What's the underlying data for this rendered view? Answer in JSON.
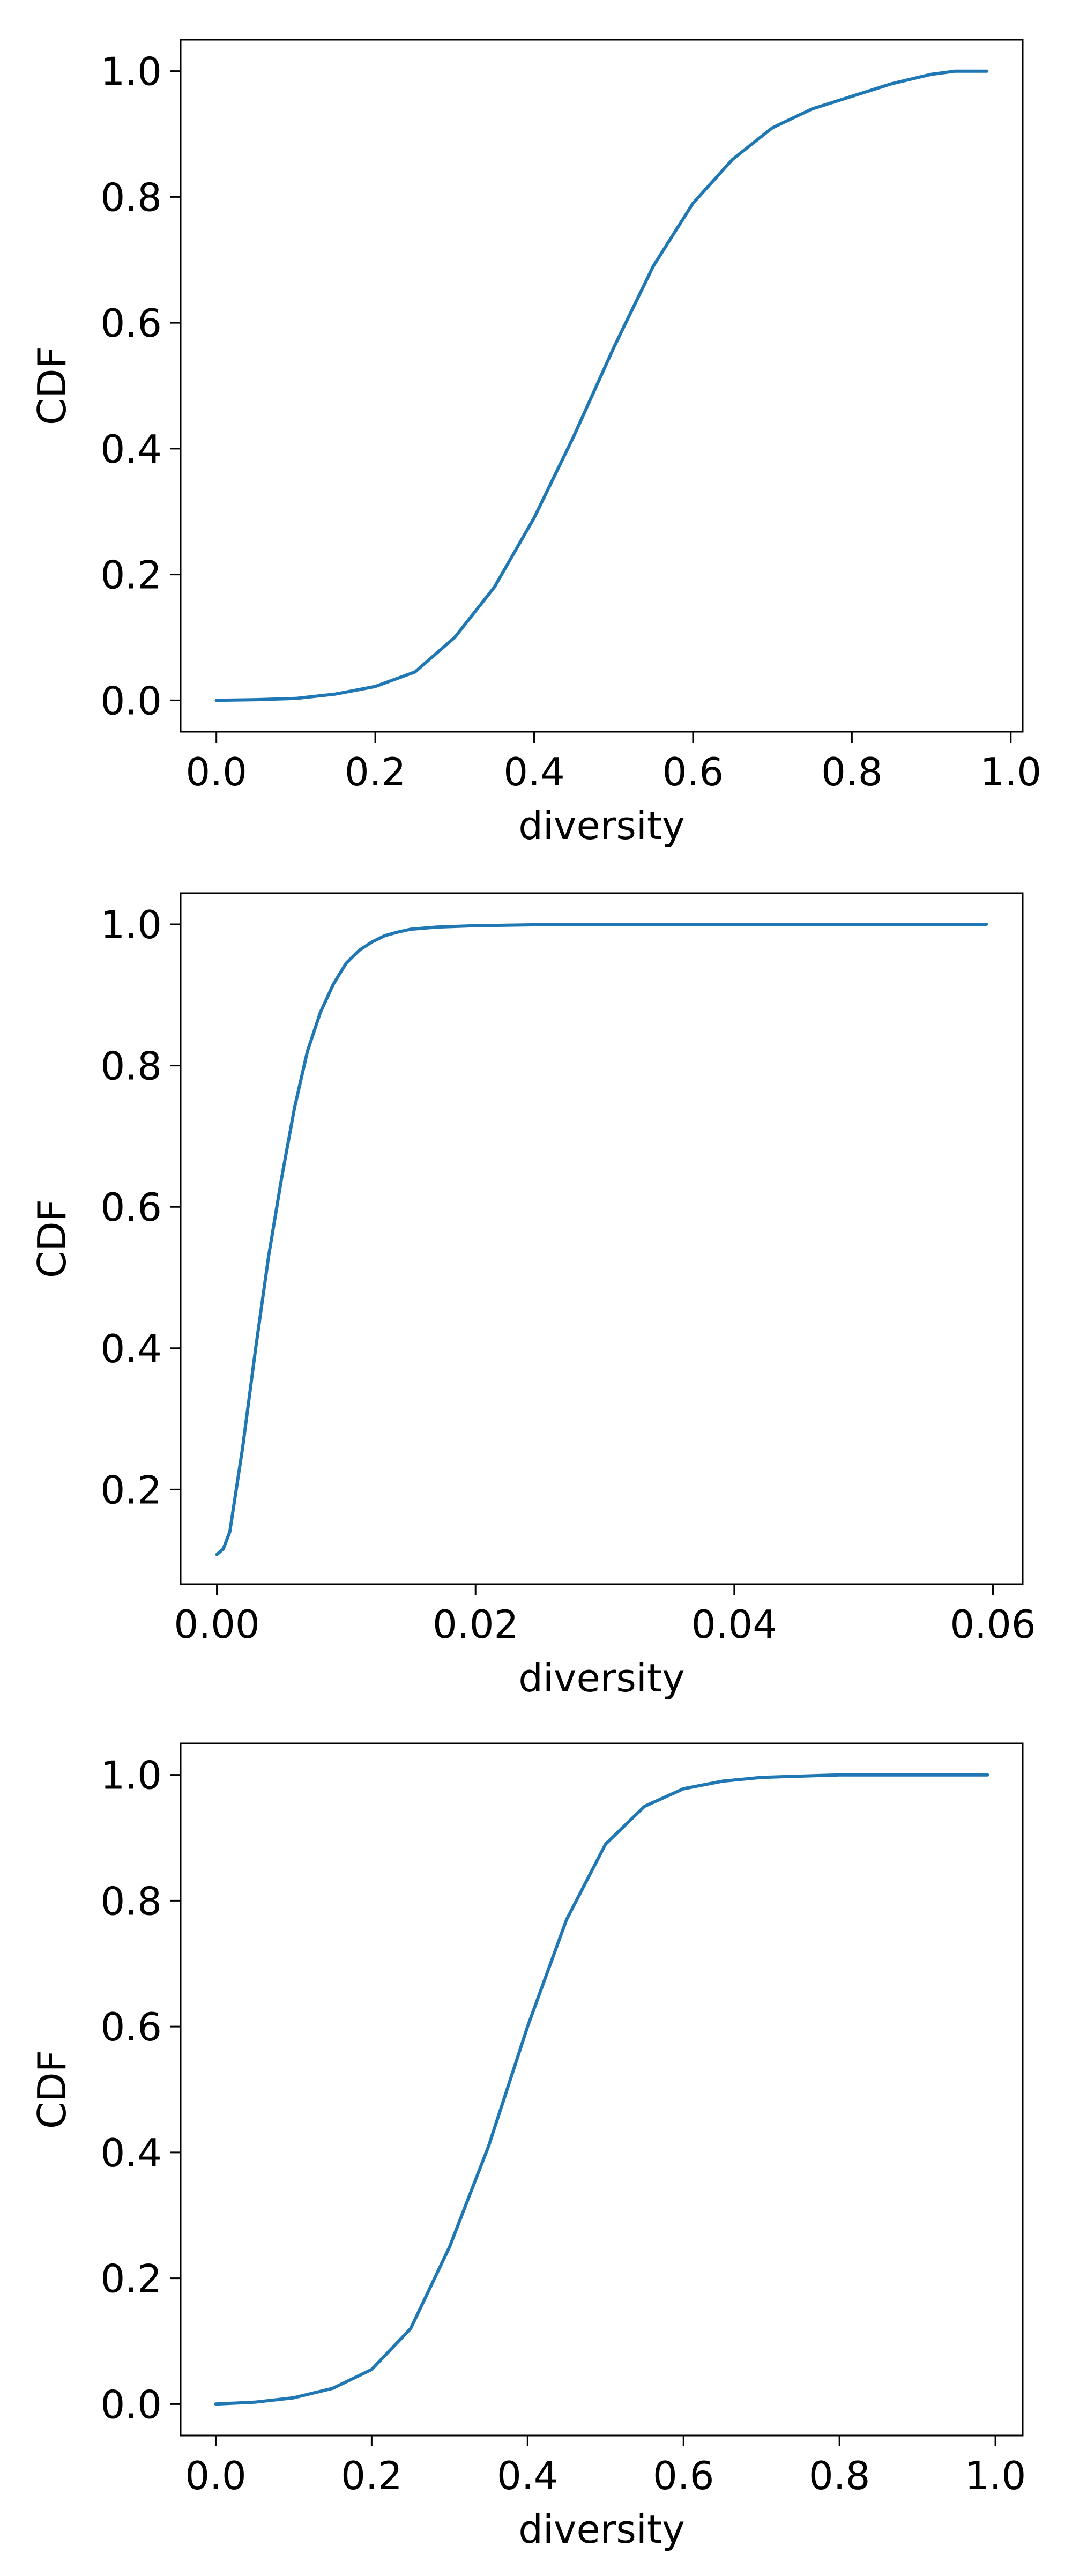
{
  "chart_data": [
    {
      "type": "line",
      "xlabel": "diversity",
      "ylabel": "CDF",
      "xlim": [
        -0.045,
        1.015
      ],
      "ylim": [
        -0.05,
        1.05
      ],
      "xticks": [
        0.0,
        0.2,
        0.4,
        0.6,
        0.8,
        1.0
      ],
      "xtick_labels": [
        "0.0",
        "0.2",
        "0.4",
        "0.6",
        "0.8",
        "1.0"
      ],
      "yticks": [
        0.0,
        0.2,
        0.4,
        0.6,
        0.8,
        1.0
      ],
      "ytick_labels": [
        "0.0",
        "0.2",
        "0.4",
        "0.6",
        "0.8",
        "1.0"
      ],
      "grid": false,
      "line_color": "#1f77b4",
      "series": [
        {
          "x": [
            0.0,
            0.05,
            0.1,
            0.15,
            0.2,
            0.25,
            0.3,
            0.35,
            0.4,
            0.45,
            0.5,
            0.55,
            0.6,
            0.65,
            0.7,
            0.75,
            0.8,
            0.85,
            0.9,
            0.93,
            0.97
          ],
          "y": [
            0.0,
            0.001,
            0.003,
            0.01,
            0.022,
            0.045,
            0.1,
            0.18,
            0.29,
            0.42,
            0.56,
            0.69,
            0.79,
            0.86,
            0.91,
            0.94,
            0.96,
            0.98,
            0.995,
            1.0,
            1.0
          ]
        }
      ]
    },
    {
      "type": "line",
      "xlabel": "diversity",
      "ylabel": "CDF",
      "xlim": [
        -0.0028,
        0.0623
      ],
      "ylim": [
        0.066,
        1.044
      ],
      "xticks": [
        0.0,
        0.02,
        0.04,
        0.06
      ],
      "xtick_labels": [
        "0.00",
        "0.02",
        "0.04",
        "0.06"
      ],
      "yticks": [
        0.2,
        0.4,
        0.6,
        0.8,
        1.0
      ],
      "ytick_labels": [
        "0.2",
        "0.4",
        "0.6",
        "0.8",
        "1.0"
      ],
      "grid": false,
      "line_color": "#1f77b4",
      "series": [
        {
          "x": [
            0.0,
            0.0005,
            0.001,
            0.002,
            0.003,
            0.004,
            0.005,
            0.006,
            0.007,
            0.008,
            0.009,
            0.01,
            0.011,
            0.012,
            0.013,
            0.014,
            0.015,
            0.017,
            0.02,
            0.025,
            0.03,
            0.04,
            0.05,
            0.0595
          ],
          "y": [
            0.108,
            0.116,
            0.14,
            0.26,
            0.4,
            0.53,
            0.64,
            0.74,
            0.82,
            0.875,
            0.915,
            0.945,
            0.963,
            0.975,
            0.984,
            0.989,
            0.993,
            0.996,
            0.998,
            0.9995,
            1.0,
            1.0,
            1.0,
            1.0
          ]
        }
      ]
    },
    {
      "type": "line",
      "xlabel": "diversity",
      "ylabel": "CDF",
      "xlim": [
        -0.045,
        1.035
      ],
      "ylim": [
        -0.05,
        1.05
      ],
      "xticks": [
        0.0,
        0.2,
        0.4,
        0.6,
        0.8,
        1.0
      ],
      "xtick_labels": [
        "0.0",
        "0.2",
        "0.4",
        "0.6",
        "0.8",
        "1.0"
      ],
      "yticks": [
        0.0,
        0.2,
        0.4,
        0.6,
        0.8,
        1.0
      ],
      "ytick_labels": [
        "0.0",
        "0.2",
        "0.4",
        "0.6",
        "0.8",
        "1.0"
      ],
      "grid": false,
      "line_color": "#1f77b4",
      "series": [
        {
          "x": [
            0.0,
            0.05,
            0.1,
            0.15,
            0.2,
            0.25,
            0.3,
            0.35,
            0.4,
            0.45,
            0.5,
            0.55,
            0.6,
            0.65,
            0.7,
            0.75,
            0.8,
            0.9,
            0.99
          ],
          "y": [
            0.0,
            0.003,
            0.01,
            0.025,
            0.055,
            0.12,
            0.25,
            0.41,
            0.6,
            0.77,
            0.89,
            0.95,
            0.978,
            0.99,
            0.996,
            0.998,
            1.0,
            1.0,
            1.0
          ]
        }
      ]
    }
  ]
}
